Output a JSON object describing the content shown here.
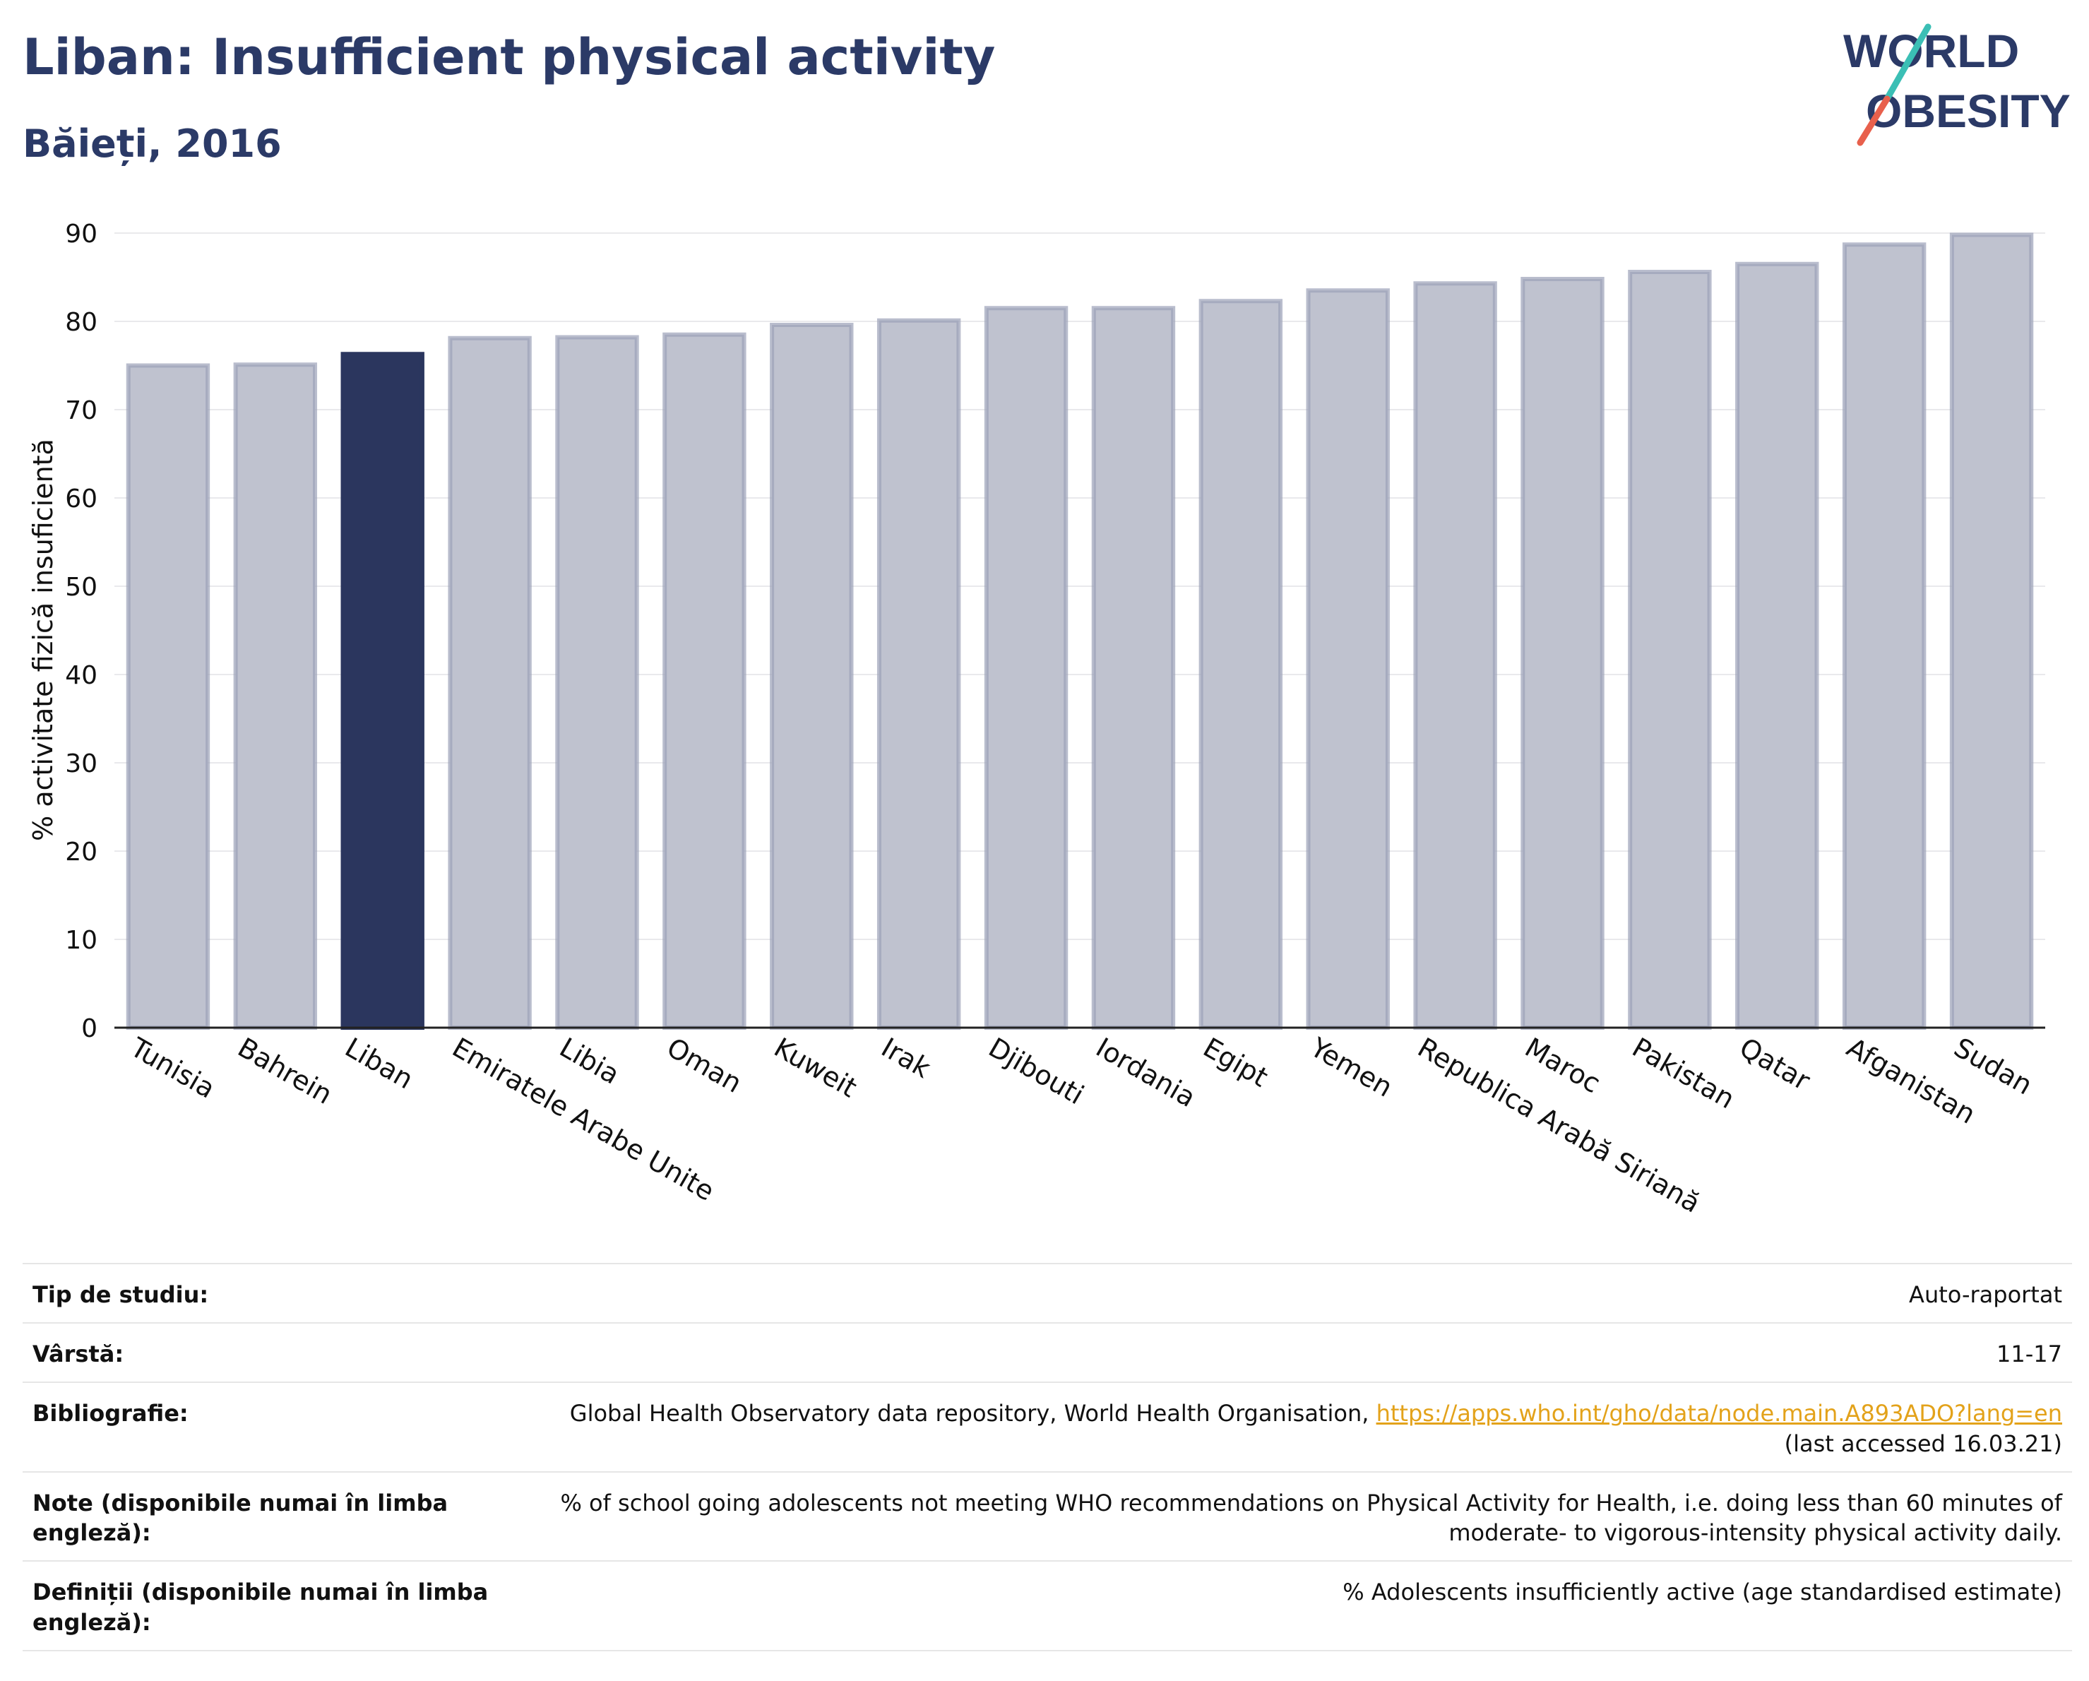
{
  "title": "Liban: Insufficient physical activity",
  "subtitle": "Băieți, 2016",
  "logo": {
    "line1": "WORLD",
    "line2": "OBESITY",
    "text_color": "#2b3a67",
    "accent_teal": "#3bbfb5",
    "accent_red": "#e8604c"
  },
  "colors": {
    "highlight": "#2b365e",
    "bar": "#bfc2cf",
    "bar_outline": "#9ba1b8",
    "title": "#2b3a67",
    "link": "#e3a21a"
  },
  "chart_data": {
    "type": "bar",
    "ylabel": "% activitate fizică insuficientă",
    "xlabel": "",
    "ylim": [
      0,
      90
    ],
    "yticks": [
      0,
      10,
      20,
      30,
      40,
      50,
      60,
      70,
      80,
      90
    ],
    "grid": true,
    "highlight": "Liban",
    "categories": [
      "Tunisia",
      "Bahrein",
      "Liban",
      "Emiratele Arabe Unite",
      "Libia",
      "Oman",
      "Kuweit",
      "Irak",
      "Djibouti",
      "Iordania",
      "Egipt",
      "Yemen",
      "Republica Arabă Siriană",
      "Maroc",
      "Pakistan",
      "Qatar",
      "Afganistan",
      "Sudan"
    ],
    "values": [
      75.0,
      75.1,
      76.3,
      78.1,
      78.2,
      78.5,
      79.6,
      80.1,
      81.5,
      81.5,
      82.3,
      83.5,
      84.3,
      84.8,
      85.6,
      86.5,
      88.7,
      89.8
    ]
  },
  "meta": {
    "study_label": "Tip de studiu:",
    "study_value": "Auto-raportat",
    "age_label": "Vârstă:",
    "age_value": "11-17",
    "bib_label": "Bibliografie:",
    "bib_text": "Global Health Observatory data repository, World Health Organisation,",
    "bib_link": "https://apps.who.int/gho/data/node.main.A893ADO?lang=en",
    "bib_accessed": "(last accessed 16.03.21)",
    "notes_label": "Note (disponibile numai în limba engleză):",
    "notes_line1": "% of school going adolescents not meeting WHO recommendations on Physical Activity for Health, i.e. doing less than 60 minutes of",
    "notes_line2": "moderate- to vigorous-intensity physical activity daily.",
    "defs_label_line1": "Definiții (disponibile numai în limba",
    "defs_label_line2": "engleză):",
    "defs_value": "% Adolescents insufficiently active (age standardised estimate)"
  }
}
